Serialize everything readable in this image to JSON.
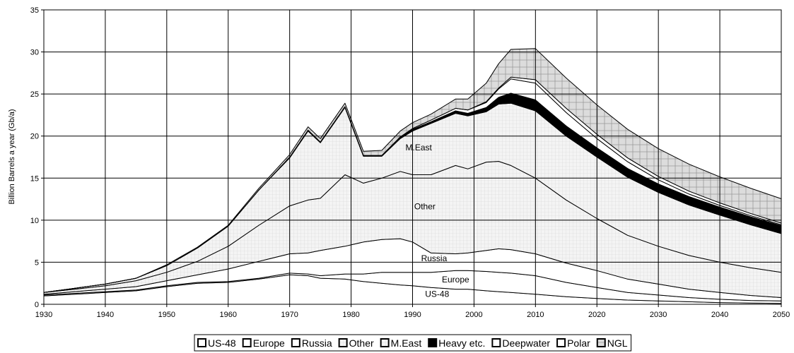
{
  "chart_data": {
    "type": "area",
    "stacked": true,
    "xlabel": "",
    "ylabel": "Billion Barrels a year (Gb/a)",
    "xlim": [
      1930,
      2050
    ],
    "ylim": [
      0,
      35
    ],
    "x_ticks": [
      1930,
      1940,
      1950,
      1960,
      1970,
      1980,
      1990,
      2000,
      2010,
      2020,
      2030,
      2040,
      2050
    ],
    "y_ticks": [
      0,
      5,
      10,
      15,
      20,
      25,
      30,
      35
    ],
    "grid": true,
    "legend_position": "bottom",
    "x": [
      1930,
      1935,
      1940,
      1945,
      1950,
      1955,
      1960,
      1965,
      1970,
      1973,
      1975,
      1979,
      1982,
      1985,
      1988,
      1990,
      1993,
      1997,
      1999,
      2002,
      2004,
      2006,
      2010,
      2015,
      2020,
      2025,
      2030,
      2035,
      2040,
      2045,
      2050
    ],
    "series": [
      {
        "name": "US-48",
        "fill": "#ffffff",
        "values": [
          1.0,
          1.2,
          1.4,
          1.6,
          2.1,
          2.5,
          2.6,
          3.0,
          3.5,
          3.4,
          3.1,
          3.0,
          2.7,
          2.5,
          2.3,
          2.2,
          2.0,
          1.8,
          1.8,
          1.6,
          1.5,
          1.4,
          1.2,
          0.9,
          0.7,
          0.5,
          0.4,
          0.3,
          0.2,
          0.15,
          0.1
        ]
      },
      {
        "name": "Europe",
        "fill": "#ffffff",
        "values": [
          0.1,
          0.1,
          0.1,
          0.1,
          0.1,
          0.1,
          0.1,
          0.1,
          0.2,
          0.2,
          0.3,
          0.6,
          0.9,
          1.3,
          1.5,
          1.6,
          1.8,
          2.2,
          2.2,
          2.3,
          2.3,
          2.3,
          2.2,
          1.7,
          1.3,
          0.9,
          0.7,
          0.5,
          0.4,
          0.3,
          0.3
        ]
      },
      {
        "name": "Russia",
        "fill": "#ffffff",
        "values": [
          0.1,
          0.2,
          0.3,
          0.4,
          0.6,
          0.9,
          1.5,
          2.0,
          2.3,
          2.5,
          3.0,
          3.3,
          3.8,
          3.9,
          4.0,
          3.6,
          2.3,
          2.0,
          2.1,
          2.5,
          2.8,
          2.8,
          2.6,
          2.3,
          2.0,
          1.6,
          1.3,
          1.0,
          0.8,
          0.6,
          0.4
        ]
      },
      {
        "name": "Other",
        "fill": "#f3f3f3",
        "values": [
          0.2,
          0.3,
          0.4,
          0.7,
          1.0,
          1.6,
          2.7,
          4.3,
          5.7,
          6.3,
          6.2,
          8.5,
          7.0,
          7.3,
          8.0,
          8.0,
          9.3,
          10.5,
          10.0,
          10.5,
          10.4,
          10.0,
          9.0,
          7.5,
          6.2,
          5.2,
          4.5,
          4.0,
          3.6,
          3.3,
          3.0
        ]
      },
      {
        "name": "M.East",
        "fill": "#f3f3f3",
        "values": [
          0.0,
          0.1,
          0.2,
          0.3,
          0.8,
          1.6,
          2.4,
          4.2,
          5.7,
          8.2,
          6.6,
          8.0,
          3.2,
          2.6,
          3.9,
          5.2,
          6.1,
          6.2,
          6.3,
          6.0,
          6.8,
          7.4,
          8.0,
          7.6,
          7.3,
          6.9,
          6.4,
          6.0,
          5.6,
          5.1,
          4.6
        ]
      },
      {
        "name": "Heavy etc.",
        "fill": "#000000",
        "values": [
          0.0,
          0.0,
          0.0,
          0.0,
          0.0,
          0.0,
          0.0,
          0.0,
          0.1,
          0.1,
          0.1,
          0.1,
          0.1,
          0.1,
          0.1,
          0.2,
          0.2,
          0.3,
          0.3,
          0.5,
          0.8,
          1.2,
          1.3,
          1.2,
          1.1,
          1.05,
          1.0,
          1.0,
          0.95,
          0.95,
          0.95
        ]
      },
      {
        "name": "Deepwater",
        "fill": "#ffffff",
        "values": [
          0.0,
          0.0,
          0.0,
          0.0,
          0.0,
          0.0,
          0.0,
          0.0,
          0.0,
          0.0,
          0.0,
          0.0,
          0.0,
          0.0,
          0.1,
          0.1,
          0.2,
          0.3,
          0.4,
          0.6,
          1.0,
          1.7,
          2.0,
          1.6,
          1.1,
          0.8,
          0.5,
          0.3,
          0.2,
          0.15,
          0.1
        ]
      },
      {
        "name": "Polar",
        "fill": "#ffffff",
        "values": [
          0.0,
          0.0,
          0.0,
          0.0,
          0.0,
          0.0,
          0.0,
          0.0,
          0.0,
          0.0,
          0.0,
          0.0,
          0.0,
          0.0,
          0.0,
          0.0,
          0.0,
          0.0,
          0.0,
          0.1,
          0.1,
          0.2,
          0.4,
          0.5,
          0.5,
          0.45,
          0.4,
          0.35,
          0.3,
          0.25,
          0.2
        ]
      },
      {
        "name": "NGL",
        "fill": "hatch",
        "values": [
          0.0,
          0.0,
          0.0,
          0.0,
          0.1,
          0.1,
          0.1,
          0.2,
          0.3,
          0.4,
          0.4,
          0.4,
          0.5,
          0.6,
          0.7,
          0.7,
          0.7,
          1.1,
          1.3,
          2.2,
          2.9,
          3.3,
          3.7,
          3.6,
          3.5,
          3.4,
          3.3,
          3.2,
          3.1,
          3.0,
          2.9
        ]
      }
    ],
    "area_labels": [
      {
        "text": "M.East",
        "x": 1991,
        "y": 18.3
      },
      {
        "text": "Other",
        "x": 1992,
        "y": 11.3
      },
      {
        "text": "Russia",
        "x": 1993.5,
        "y": 5.1
      },
      {
        "text": "Europe",
        "x": 1997,
        "y": 2.6
      },
      {
        "text": "US-48",
        "x": 1994,
        "y": 0.9
      }
    ]
  }
}
